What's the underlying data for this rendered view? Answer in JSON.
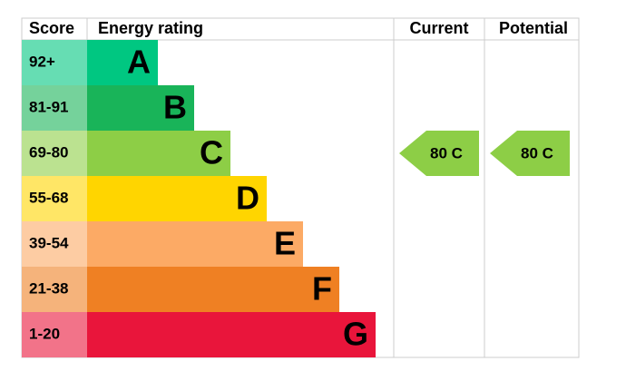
{
  "header": {
    "score": "Score",
    "rating": "Energy rating",
    "current": "Current",
    "potential": "Potential"
  },
  "bands": [
    {
      "score": "92+",
      "letter": "A",
      "color": "#00c781",
      "score_color": "#66ddb3"
    },
    {
      "score": "81-91",
      "letter": "B",
      "color": "#19b459",
      "score_color": "#75d29b"
    },
    {
      "score": "69-80",
      "letter": "C",
      "color": "#8dce46",
      "score_color": "#bbe290"
    },
    {
      "score": "55-68",
      "letter": "D",
      "color": "#ffd500",
      "score_color": "#ffe666"
    },
    {
      "score": "39-54",
      "letter": "E",
      "color": "#fcaa65",
      "score_color": "#fdcca3"
    },
    {
      "score": "21-38",
      "letter": "F",
      "color": "#ef8023",
      "score_color": "#f5b37b"
    },
    {
      "score": "1-20",
      "letter": "G",
      "color": "#e9153b",
      "score_color": "#f27389"
    }
  ],
  "current": {
    "value": 80,
    "label": "80 C"
  },
  "potential": {
    "value": 80,
    "label": "80 C"
  }
}
